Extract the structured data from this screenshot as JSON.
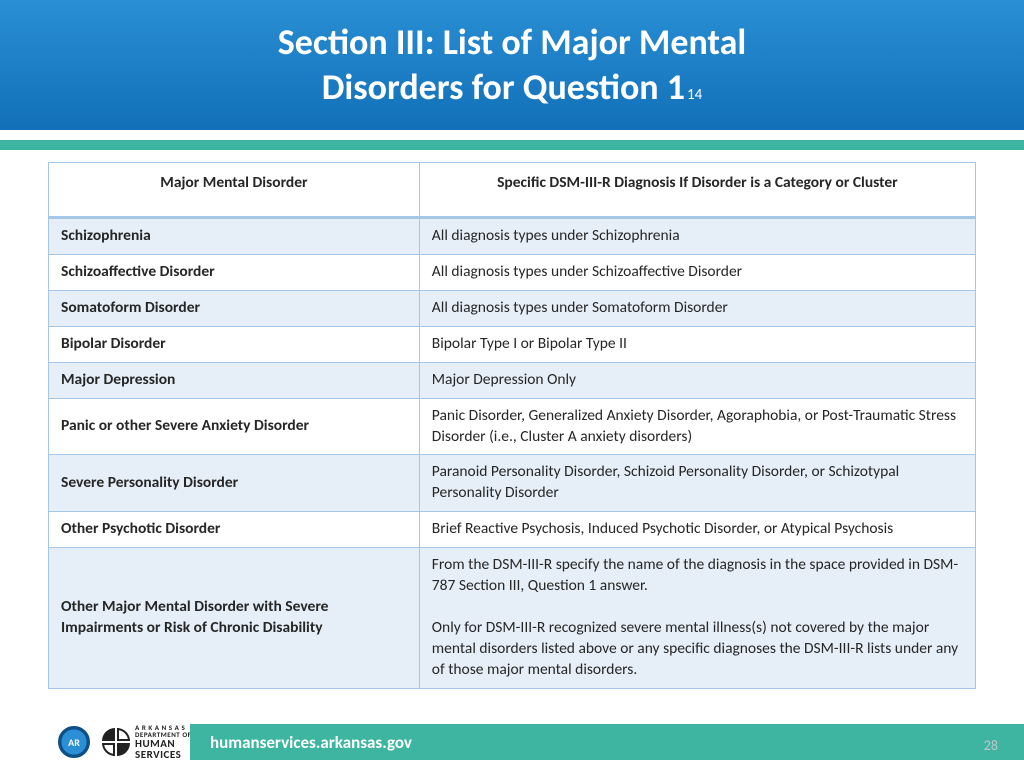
{
  "colors": {
    "header_gradient_top": "#2a8fd4",
    "header_gradient_bottom": "#1170b8",
    "accent_teal": "#3eb5a0",
    "row_shade": "#e6eff7",
    "row_plain": "#ffffff",
    "table_border": "#a5c7e6",
    "text": "#262626",
    "page_num": "#bfc7ce"
  },
  "header": {
    "title_line1": "Section III: List of Major Mental",
    "title_line2": "Disorders for Question 1",
    "footnote_ref": "14"
  },
  "table": {
    "columns": [
      "Major Mental Disorder",
      "Specific DSM-III-R Diagnosis If Disorder is a Category or Cluster"
    ],
    "rows": [
      {
        "shade": true,
        "disorder": "Schizophrenia",
        "dsm": "All diagnosis types under Schizophrenia"
      },
      {
        "shade": false,
        "disorder": "Schizoaffective Disorder",
        "dsm": "All diagnosis types under Schizoaffective Disorder"
      },
      {
        "shade": true,
        "disorder": "Somatoform Disorder",
        "dsm": "All diagnosis types under Somatoform Disorder"
      },
      {
        "shade": false,
        "disorder": "Bipolar Disorder",
        "dsm": "Bipolar Type I or Bipolar Type II"
      },
      {
        "shade": true,
        "disorder": "Major Depression",
        "dsm": "Major Depression Only"
      },
      {
        "shade": false,
        "disorder": "Panic or other Severe Anxiety Disorder",
        "dsm": "Panic Disorder, Generalized Anxiety Disorder, Agoraphobia, or Post-Traumatic Stress Disorder (i.e., Cluster A anxiety disorders)"
      },
      {
        "shade": true,
        "disorder": "Severe Personality Disorder",
        "dsm": "Paranoid Personality Disorder, Schizoid Personality Disorder, or Schizotypal Personality Disorder"
      },
      {
        "shade": false,
        "disorder": "Other Psychotic Disorder",
        "dsm": "Brief Reactive Psychosis, Induced Psychotic Disorder, or Atypical Psychosis"
      },
      {
        "shade": true,
        "disorder": "Other Major Mental Disorder with Severe Impairments or Risk of Chronic Disability",
        "dsm": "From the DSM-III-R specify the name of the diagnosis in the space provided in DSM-787 Section III, Question 1 answer.\n\nOnly for DSM-III-R recognized severe mental illness(s) not covered by the major mental disorders listed above or any specific diagnoses the DSM-III-R lists under any of those major mental disorders."
      }
    ]
  },
  "footer": {
    "seal_label": "AR",
    "dhs_top": "A R K A N S A S",
    "dhs_mid": "DEPARTMENT OF",
    "dhs_brand1": "HUMAN",
    "dhs_brand2": "SERVICES",
    "url": "humanservices.arkansas.gov",
    "page_number": "28"
  }
}
